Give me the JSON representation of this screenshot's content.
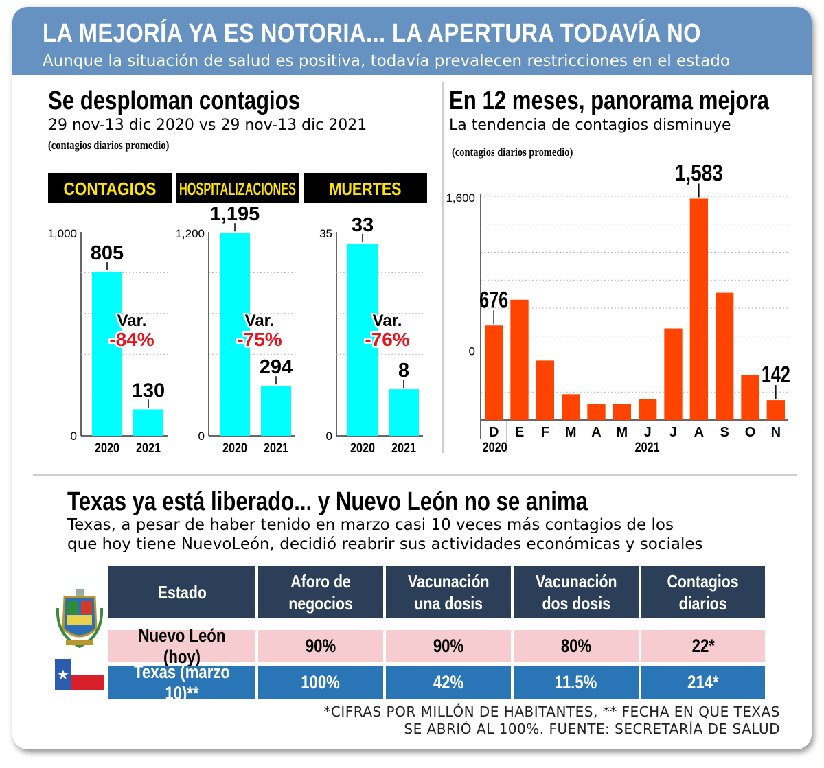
{
  "header": {
    "title": "LA MEJORÍA YA ES NOTORIA... LA APERTURA TODAVÍA NO",
    "subtitle": "Aunque la situación de salud es positiva, todavía prevalecen restricciones en el estado"
  },
  "left_section": {
    "title": "Se desploman contagios",
    "subtitle": "29 nov-13 dic 2020 vs 29 nov-13 dic 2021",
    "note": "(contagios diarios promedio)"
  },
  "right_section": {
    "title": "En 12 meses, panorama mejora",
    "subtitle": "La tendencia de contagios disminuye",
    "note": "(contagios diarios promedio)"
  },
  "bottom_section": {
    "title": "Texas ya está liberado... y Nuevo León no se anima",
    "subtitle_line1": "Texas, a pesar de haber tenido en marzo casi 10 veces más contagios de los",
    "subtitle_line2": "que hoy tiene NuevoLeón, decidió reabrir sus actividades económicas y sociales"
  },
  "colors": {
    "header_bg": "#6592c1",
    "cyan_bar": "#00ffff",
    "orange_bar": "#ff4400",
    "negative_var": "#e8121c",
    "table_header": "#2c3f58",
    "row_nl": "#f6ccd0",
    "row_tx": "#2a75b5"
  },
  "chart_data": [
    {
      "type": "bar",
      "panel": "CONTAGIOS",
      "categories": [
        "2020",
        "2021"
      ],
      "values": [
        805,
        130
      ],
      "value_labels": [
        "805",
        "130"
      ],
      "ylim": [
        0,
        1000
      ],
      "yticks": [
        "0",
        "1,000"
      ],
      "variation_label": "Var.",
      "variation": "-84%"
    },
    {
      "type": "bar",
      "panel": "HOSPITALIZACIONES",
      "categories": [
        "2020",
        "2021"
      ],
      "values": [
        1195,
        294
      ],
      "value_labels": [
        "1,195",
        "294"
      ],
      "ylim": [
        0,
        1200
      ],
      "yticks": [
        "0",
        "1,200"
      ],
      "variation_label": "Var.",
      "variation": "-75%"
    },
    {
      "type": "bar",
      "panel": "MUERTES",
      "categories": [
        "2020",
        "2021"
      ],
      "values": [
        33,
        8
      ],
      "value_labels": [
        "33",
        "8"
      ],
      "ylim": [
        0,
        35
      ],
      "yticks": [
        "0",
        "35"
      ],
      "variation_label": "Var.",
      "variation": "-76%"
    },
    {
      "type": "bar",
      "categories": [
        "D",
        "E",
        "F",
        "M",
        "A",
        "M",
        "J",
        "J",
        "A",
        "S",
        "O",
        "N"
      ],
      "year_labels": [
        "2020",
        "2021"
      ],
      "values": [
        676,
        860,
        425,
        185,
        115,
        115,
        150,
        655,
        1583,
        910,
        320,
        142
      ],
      "value_labels": {
        "0": "676",
        "8": "1,583",
        "11": "142"
      },
      "yticks": [
        "0",
        "1,600"
      ],
      "ylim": [
        0,
        1600
      ]
    }
  ],
  "table": {
    "headers": [
      "Estado",
      "Aforo de\nnegocios",
      "Vacunación\nuna dosis",
      "Vacunación\ndos dosis",
      "Contagios\ndiarios"
    ],
    "rows": [
      [
        "Nuevo León (hoy)",
        "90%",
        "90%",
        "80%",
        "22*"
      ],
      [
        "Texas (marzo 10)**",
        "100%",
        "42%",
        "11.5%",
        "214*"
      ]
    ],
    "row_icons": [
      "nuevo-leon-coat-of-arms-icon",
      "texas-flag-icon"
    ]
  },
  "footnote": {
    "line1": "*CIFRAS POR MILLÓN DE HABITANTES, ** FECHA EN QUE TEXAS",
    "line2": "SE ABRIÓ AL 100%. FUENTE: SECRETARÍA DE SALUD"
  }
}
